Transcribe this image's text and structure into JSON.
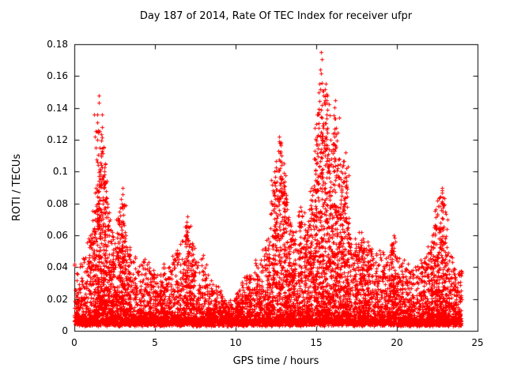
{
  "page": {
    "background": "#ffffff"
  },
  "chart_data": {
    "type": "scatter",
    "title": "Day 187 of 2014, Rate Of TEC Index for receiver ufpr",
    "xlabel": "GPS time / hours",
    "ylabel": "ROTI / TECUs",
    "xlim": [
      0,
      25
    ],
    "ylim": [
      0,
      0.18
    ],
    "x_tick_values": [
      0,
      5,
      10,
      15,
      20,
      25
    ],
    "x_tick_labels": [
      "0",
      "5",
      "10",
      "15",
      "20",
      "25"
    ],
    "y_tick_values": [
      0,
      0.02,
      0.04,
      0.06,
      0.08,
      0.1,
      0.12,
      0.14,
      0.16,
      0.18
    ],
    "y_tick_labels": [
      "0",
      "0.02",
      "0.04",
      "0.06",
      "0.08",
      "0.1",
      "0.12",
      "0.14",
      "0.16",
      "0.18"
    ],
    "grid": false,
    "legend": "none",
    "marker": "plus",
    "marker_color": "#ff0000",
    "axis_color": "#000000",
    "data_time_range": [
      0,
      24
    ],
    "value_floor": 0.005,
    "max_value": 0.175,
    "synthesis": {
      "seed": 20140187,
      "n_background": 7000,
      "background_exponent": 3.0,
      "cluster_threshold": 0.055,
      "cluster_points": 55,
      "cluster_sigma_hours": 0.1,
      "cluster_exponent": 1.4
    },
    "envelope": [
      [
        0.0,
        0.045
      ],
      [
        0.3,
        0.038
      ],
      [
        0.7,
        0.05
      ],
      [
        1.0,
        0.06
      ],
      [
        1.3,
        0.09
      ],
      [
        1.5,
        0.148
      ],
      [
        1.7,
        0.128
      ],
      [
        1.9,
        0.105
      ],
      [
        2.2,
        0.07
      ],
      [
        2.5,
        0.055
      ],
      [
        2.8,
        0.075
      ],
      [
        3.0,
        0.09
      ],
      [
        3.2,
        0.06
      ],
      [
        3.5,
        0.05
      ],
      [
        4.0,
        0.042
      ],
      [
        4.5,
        0.048
      ],
      [
        5.0,
        0.035
      ],
      [
        5.5,
        0.042
      ],
      [
        6.0,
        0.046
      ],
      [
        6.5,
        0.052
      ],
      [
        7.0,
        0.072
      ],
      [
        7.3,
        0.055
      ],
      [
        7.7,
        0.042
      ],
      [
        8.0,
        0.047
      ],
      [
        8.5,
        0.032
      ],
      [
        9.0,
        0.026
      ],
      [
        9.5,
        0.016
      ],
      [
        10.0,
        0.022
      ],
      [
        10.5,
        0.032
      ],
      [
        11.0,
        0.042
      ],
      [
        11.5,
        0.05
      ],
      [
        12.0,
        0.058
      ],
      [
        12.4,
        0.1
      ],
      [
        12.7,
        0.122
      ],
      [
        13.0,
        0.105
      ],
      [
        13.3,
        0.07
      ],
      [
        13.6,
        0.062
      ],
      [
        14.0,
        0.078
      ],
      [
        14.4,
        0.062
      ],
      [
        14.7,
        0.09
      ],
      [
        15.0,
        0.13
      ],
      [
        15.3,
        0.175
      ],
      [
        15.6,
        0.155
      ],
      [
        15.9,
        0.12
      ],
      [
        16.2,
        0.145
      ],
      [
        16.5,
        0.1
      ],
      [
        16.8,
        0.112
      ],
      [
        17.0,
        0.068
      ],
      [
        17.4,
        0.058
      ],
      [
        17.8,
        0.062
      ],
      [
        18.2,
        0.056
      ],
      [
        18.6,
        0.05
      ],
      [
        19.0,
        0.052
      ],
      [
        19.4,
        0.046
      ],
      [
        19.8,
        0.06
      ],
      [
        20.2,
        0.05
      ],
      [
        20.6,
        0.042
      ],
      [
        21.0,
        0.04
      ],
      [
        21.4,
        0.046
      ],
      [
        21.8,
        0.05
      ],
      [
        22.2,
        0.06
      ],
      [
        22.5,
        0.082
      ],
      [
        22.8,
        0.09
      ],
      [
        23.0,
        0.075
      ],
      [
        23.3,
        0.05
      ],
      [
        23.6,
        0.04
      ],
      [
        24.0,
        0.042
      ]
    ]
  }
}
